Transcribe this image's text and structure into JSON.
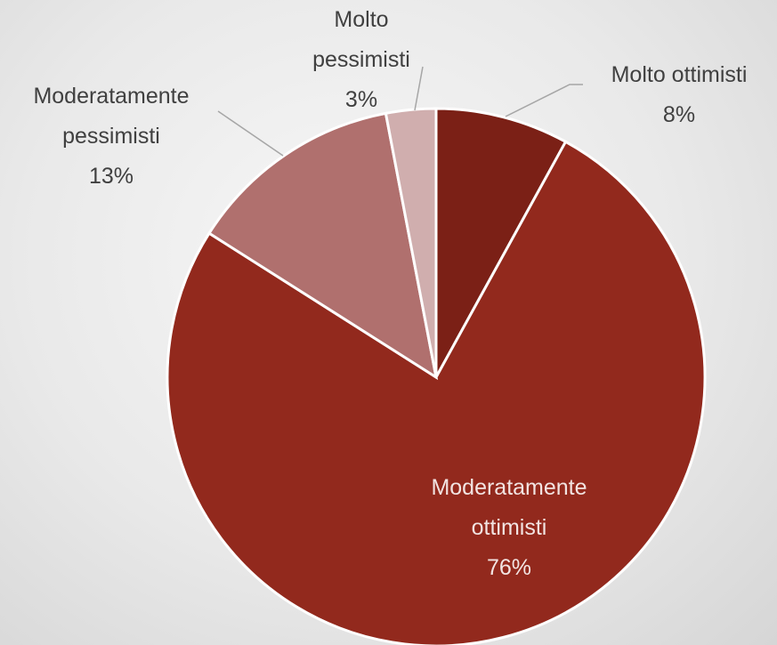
{
  "chart_data": {
    "type": "pie",
    "categories": [
      "Molto ottimisti",
      "Moderatamente ottimisti",
      "Moderatamente pessimisti",
      "Molto pessimisti"
    ],
    "values": [
      8,
      76,
      13,
      3
    ],
    "value_labels": [
      "8%",
      "76%",
      "13%",
      "3%"
    ],
    "colors": [
      "#7b2016",
      "#92291d",
      "#b0706e",
      "#d0aeae"
    ]
  }
}
